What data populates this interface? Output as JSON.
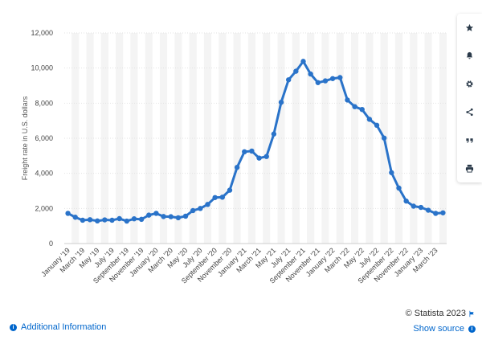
{
  "chart_data": {
    "type": "line",
    "title": "",
    "xlabel": "",
    "ylabel": "Freight rate in U.S. dollars",
    "ylim": [
      0,
      12000
    ],
    "yticks": [
      0,
      2000,
      4000,
      6000,
      8000,
      10000,
      12000
    ],
    "ytick_labels": [
      "0",
      "2,000",
      "4,000",
      "6,000",
      "8,000",
      "10,000",
      "12,000"
    ],
    "grid": true,
    "line_color": "#2a73c9",
    "band_color": "#f4f4f4",
    "x_labels": [
      "January '19",
      "March '19",
      "May '19",
      "July '19",
      "September '19",
      "November '19",
      "January '20",
      "March '20",
      "May '20",
      "July '20",
      "September '20",
      "November '20",
      "January '21",
      "March '21",
      "May '21",
      "July '21",
      "September '21",
      "November '21",
      "January '22",
      "March '22",
      "May '22",
      "July '22",
      "September '22",
      "November '22",
      "January '23",
      "March '23"
    ],
    "series": [
      {
        "name": "Freight rate",
        "values": [
          1720,
          1500,
          1330,
          1360,
          1290,
          1350,
          1330,
          1420,
          1280,
          1410,
          1380,
          1620,
          1720,
          1540,
          1530,
          1470,
          1560,
          1880,
          2000,
          2230,
          2620,
          2640,
          3040,
          4340,
          5230,
          5270,
          4870,
          4960,
          6240,
          8050,
          9330,
          9820,
          10380,
          9660,
          9170,
          9270,
          9400,
          9460,
          8180,
          7800,
          7640,
          7080,
          6740,
          6010,
          4040,
          3160,
          2420,
          2130,
          2060,
          1900,
          1720,
          1750
        ]
      }
    ]
  },
  "toolbar": {
    "icons": [
      "star-icon",
      "bell-icon",
      "gear-icon",
      "share-icon",
      "quote-icon",
      "print-icon"
    ]
  },
  "footer": {
    "copyright": "© Statista 2023",
    "additional_info": "Additional Information",
    "show_source": "Show source"
  }
}
